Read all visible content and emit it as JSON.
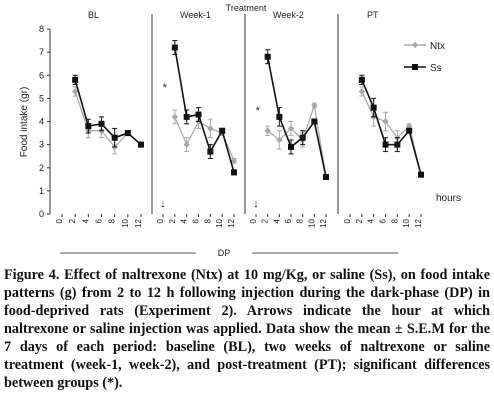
{
  "chart_data": {
    "type": "line",
    "title": "Treatment",
    "ylabel": "Food intake (gr)",
    "xlabel": "hours",
    "ylim": [
      0,
      8
    ],
    "yticks": [
      0,
      1,
      2,
      3,
      4,
      5,
      6,
      7,
      8
    ],
    "xticks": [
      0,
      2,
      4,
      6,
      8,
      10,
      12
    ],
    "dp_label": "DP",
    "arrow_symbol": "↓",
    "grid": false,
    "legend_position": "top-right",
    "colors": {
      "ntx": "#a8a8a8",
      "ss": "#111111"
    },
    "panels": [
      {
        "label": "BL",
        "arrow": false,
        "series": [
          {
            "key": "ntx",
            "x": [
              2,
              4,
              6,
              8,
              10,
              12
            ],
            "y": [
              5.3,
              3.6,
              3.6,
              2.9,
              3.5,
              3.0
            ],
            "err": [
              0.2,
              0.3,
              0.3,
              0.3,
              0.1,
              0.1
            ]
          },
          {
            "key": "ss",
            "x": [
              2,
              4,
              6,
              8,
              10,
              12
            ],
            "y": [
              5.8,
              3.8,
              3.9,
              3.3,
              3.5,
              3.0
            ],
            "err": [
              0.2,
              0.3,
              0.3,
              0.4,
              0.1,
              0.1
            ]
          }
        ],
        "stars": []
      },
      {
        "label": "Week-1",
        "arrow": true,
        "series": [
          {
            "key": "ntx",
            "x": [
              2,
              4,
              6,
              8,
              10,
              12
            ],
            "y": [
              4.2,
              3.0,
              4.0,
              3.7,
              3.5,
              2.3
            ],
            "err": [
              0.3,
              0.3,
              0.3,
              0.4,
              0.1,
              0.1
            ]
          },
          {
            "key": "ss",
            "x": [
              2,
              4,
              6,
              8,
              10,
              12
            ],
            "y": [
              7.2,
              4.2,
              4.3,
              2.7,
              3.6,
              1.8
            ],
            "err": [
              0.3,
              0.3,
              0.3,
              0.3,
              0.1,
              0.1
            ]
          }
        ],
        "stars": [
          {
            "x": 0.3,
            "y": 5.5,
            "text": "*"
          }
        ]
      },
      {
        "label": "Week-2",
        "arrow": true,
        "series": [
          {
            "key": "ntx",
            "x": [
              2,
              4,
              6,
              8,
              10,
              12
            ],
            "y": [
              3.6,
              3.2,
              3.7,
              3.2,
              4.7,
              1.6
            ],
            "err": [
              0.2,
              0.4,
              0.3,
              0.3,
              0.1,
              0.1
            ]
          },
          {
            "key": "ss",
            "x": [
              2,
              4,
              6,
              8,
              10,
              12
            ],
            "y": [
              6.8,
              4.2,
              2.9,
              3.3,
              4.0,
              1.6
            ],
            "err": [
              0.3,
              0.4,
              0.3,
              0.3,
              0.1,
              0.1
            ]
          }
        ],
        "stars": [
          {
            "x": 0.3,
            "y": 4.5,
            "text": "*"
          }
        ]
      },
      {
        "label": "PT",
        "arrow": false,
        "series": [
          {
            "key": "ntx",
            "x": [
              2,
              4,
              6,
              8,
              10,
              12
            ],
            "y": [
              5.3,
              4.2,
              4.0,
              3.3,
              3.8,
              1.7
            ],
            "err": [
              0.2,
              0.4,
              0.4,
              0.3,
              0.1,
              0.1
            ]
          },
          {
            "key": "ss",
            "x": [
              2,
              4,
              6,
              8,
              10,
              12
            ],
            "y": [
              5.8,
              4.6,
              3.0,
              3.0,
              3.6,
              1.7
            ],
            "err": [
              0.2,
              0.4,
              0.3,
              0.3,
              0.1,
              0.1
            ]
          }
        ],
        "stars": []
      }
    ],
    "legend": [
      {
        "key": "ntx",
        "name": "Ntx"
      },
      {
        "key": "ss",
        "name": "Ss"
      }
    ]
  },
  "caption": "Figure 4. Effect of naltrexone (Ntx) at 10 mg/Kg, or saline (Ss), on food intake patterns (g) from 2 to 12 h following injection during the dark-phase (DP) in food-deprived rats (Experiment 2). Arrows indicate the hour at which naltrexone or saline injection was applied. Data show the mean ± S.E.M for the 7 days of each period: baseline (BL), two weeks of naltrexone or saline treatment (week-1, week-2), and post-treatment (PT); significant differences between groups (*)."
}
